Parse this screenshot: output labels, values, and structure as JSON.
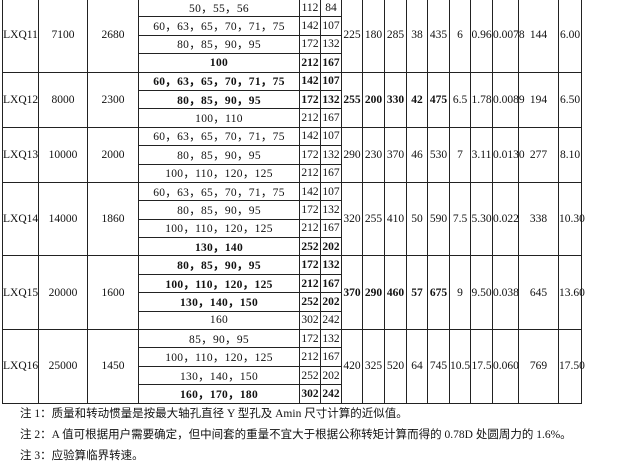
{
  "table": {
    "groups": [
      {
        "model": "LXQ11",
        "torque": "7100",
        "speed": "2680",
        "rows": [
          {
            "bore": "50，55，56",
            "L1": "112",
            "L2": "84",
            "b": false
          },
          {
            "bore": "60，63，65，70，71，75",
            "L1": "142",
            "L2": "107",
            "b": false
          },
          {
            "bore": "80，85，90，95",
            "L1": "172",
            "L2": "132",
            "b": false
          },
          {
            "bore": "100",
            "L1": "212",
            "L2": "167",
            "b": true
          }
        ],
        "vals": [
          "225",
          "180",
          "285",
          "38",
          "435",
          "6",
          "0.96",
          "0.0078",
          "144",
          "6.00"
        ],
        "bvals": false
      },
      {
        "model": "LXQ12",
        "torque": "8000",
        "speed": "2300",
        "rows": [
          {
            "bore": "60，63，65，70，71，75",
            "L1": "142",
            "L2": "107",
            "b": true
          },
          {
            "bore": "80，85，90，95",
            "L1": "172",
            "L2": "132",
            "b": true
          },
          {
            "bore": "100，110",
            "L1": "212",
            "L2": "167",
            "b": false
          }
        ],
        "vals": [
          "255",
          "200",
          "330",
          "42",
          "475",
          "6.5",
          "1.78",
          "0.0089",
          "194",
          "6.50"
        ],
        "bvals": true
      },
      {
        "model": "LXQ13",
        "torque": "10000",
        "speed": "2000",
        "rows": [
          {
            "bore": "60，63，65，70，71，75",
            "L1": "142",
            "L2": "107",
            "b": false
          },
          {
            "bore": "80，85，90，95",
            "L1": "172",
            "L2": "132",
            "b": false
          },
          {
            "bore": "100，110，120，125",
            "L1": "212",
            "L2": "167",
            "b": false
          }
        ],
        "vals": [
          "290",
          "230",
          "370",
          "46",
          "530",
          "7",
          "3.11",
          "0.0130",
          "277",
          "8.10"
        ],
        "bvals": false
      },
      {
        "model": "LXQ14",
        "torque": "14000",
        "speed": "1860",
        "rows": [
          {
            "bore": "60，63，65，70，71，75",
            "L1": "142",
            "L2": "107",
            "b": false
          },
          {
            "bore": "80，85，90，95",
            "L1": "172",
            "L2": "132",
            "b": false
          },
          {
            "bore": "100，110，120，125",
            "L1": "212",
            "L2": "167",
            "b": false
          },
          {
            "bore": "130，140",
            "L1": "252",
            "L2": "202",
            "b": true
          }
        ],
        "vals": [
          "320",
          "255",
          "410",
          "50",
          "590",
          "7.5",
          "5.30",
          "0.022",
          "338",
          "10.30"
        ],
        "bvals": false
      },
      {
        "model": "LXQ15",
        "torque": "20000",
        "speed": "1600",
        "rows": [
          {
            "bore": "80，85，90，95",
            "L1": "172",
            "L2": "132",
            "b": true
          },
          {
            "bore": "100，110，120，125",
            "L1": "212",
            "L2": "167",
            "b": true
          },
          {
            "bore": "130，140，150",
            "L1": "252",
            "L2": "202",
            "b": true
          },
          {
            "bore": "160",
            "L1": "302",
            "L2": "242",
            "b": false
          }
        ],
        "vals": [
          "370",
          "290",
          "460",
          "57",
          "675",
          "9",
          "9.50",
          "0.038",
          "645",
          "13.60"
        ],
        "bvals": true
      },
      {
        "model": "LXQ16",
        "torque": "25000",
        "speed": "1450",
        "rows": [
          {
            "bore": "85，90，95",
            "L1": "172",
            "L2": "132",
            "b": false
          },
          {
            "bore": "100，110，120，125",
            "L1": "212",
            "L2": "167",
            "b": false
          },
          {
            "bore": "130，140，150",
            "L1": "252",
            "L2": "202",
            "b": false
          },
          {
            "bore": "160，170，180",
            "L1": "302",
            "L2": "242",
            "b": true
          }
        ],
        "vals": [
          "420",
          "325",
          "520",
          "64",
          "745",
          "10.5",
          "17.5",
          "0.060",
          "769",
          "17.50"
        ],
        "bvals": false
      }
    ]
  },
  "notes": [
    "注 1：质量和转动惯量是按最大轴孔直径 Y 型孔及 Amin 尺寸计算的近似值。",
    "注 2：A 值可根据用户需要确定，但中间套的重量不宜大于根据公称转矩计算而得的 0.78D 处圆周力的 1.6%。",
    "注 3：应验算临界转速。"
  ]
}
